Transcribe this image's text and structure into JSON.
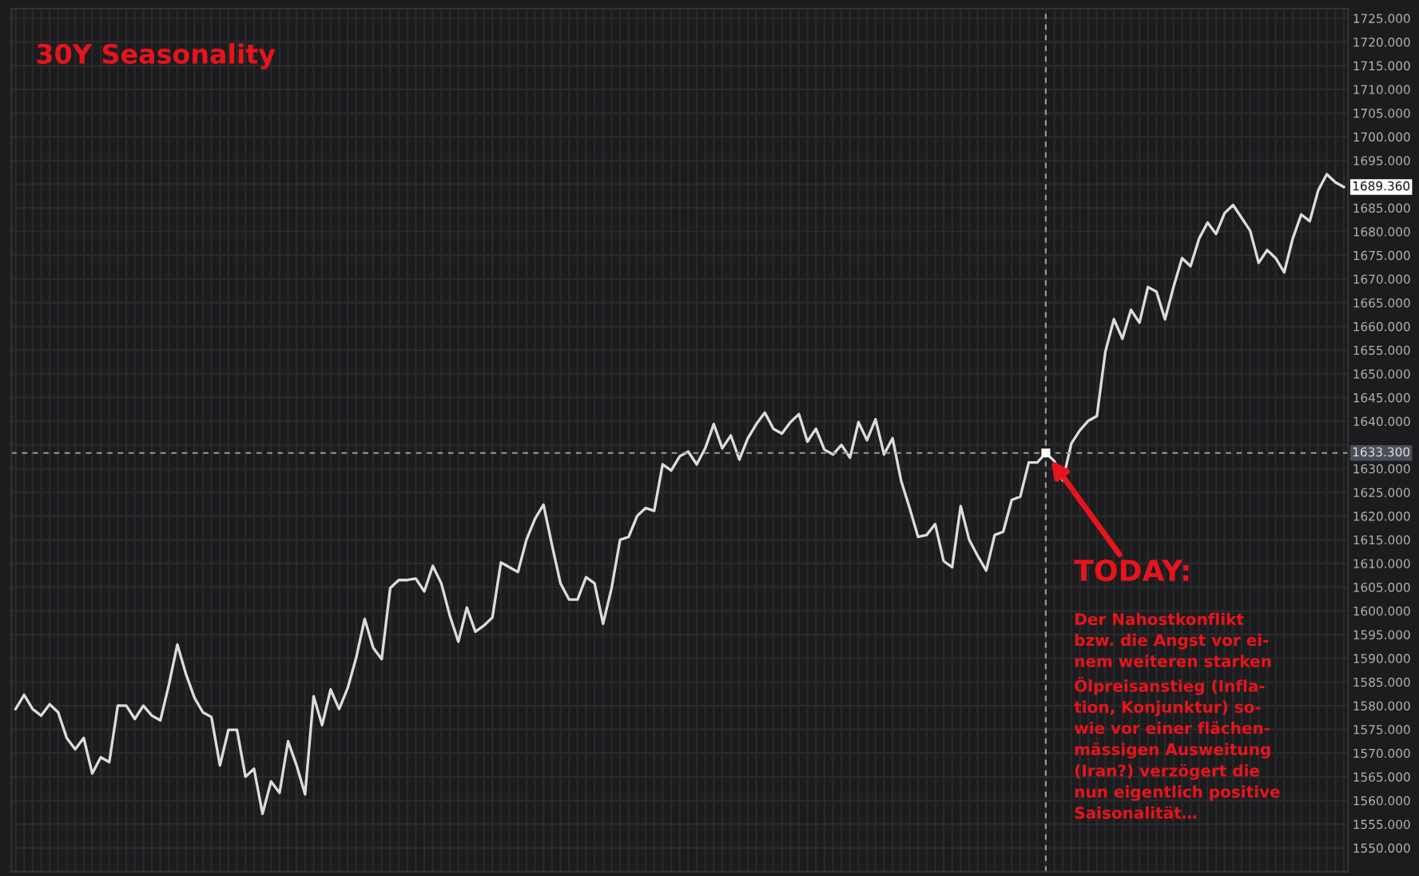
{
  "chart_data": {
    "type": "line",
    "title": "30Y Seasonality",
    "categories": [
      null,
      null,
      null,
      null,
      null,
      null,
      null,
      null,
      null,
      null,
      null,
      null,
      null,
      null,
      null,
      null,
      null,
      null,
      null,
      null,
      null,
      null,
      null,
      null,
      null,
      null,
      null,
      null,
      null,
      null,
      null,
      null,
      null,
      null,
      null,
      null,
      null,
      null,
      null,
      null,
      null,
      null,
      null,
      null,
      null,
      null,
      null,
      null,
      null,
      null,
      null,
      null,
      null,
      null,
      null,
      null,
      null,
      null,
      null,
      null,
      null,
      null,
      null,
      null,
      null,
      null,
      null,
      null,
      null,
      null,
      null,
      null,
      null,
      null,
      null,
      null,
      null,
      null,
      null,
      null,
      null,
      null,
      null,
      null,
      null,
      null,
      null,
      null,
      null,
      null,
      null,
      null,
      null,
      null,
      null,
      null,
      null,
      null,
      null,
      null,
      null,
      null,
      null,
      null,
      null,
      null,
      null,
      null,
      null,
      null,
      null,
      null,
      null,
      null,
      null,
      null,
      null,
      null,
      null,
      null,
      null,
      null,
      null,
      null,
      null,
      null,
      null,
      null,
      null,
      null,
      null,
      null,
      null,
      null,
      null,
      null,
      null,
      null,
      null,
      null,
      null,
      null,
      null,
      null,
      null,
      null,
      null,
      null,
      null,
      null,
      null,
      null,
      null,
      null,
      null,
      null,
      null
    ],
    "series": [
      {
        "color": "#dcdcdc",
        "values": [
          1579.3,
          1582.3,
          1579.3,
          1577.9,
          1580.3,
          1578.6,
          1573.2,
          1570.8,
          1573.2,
          1565.7,
          1569.1,
          1568.1,
          1580.0,
          1580.0,
          1577.2,
          1580.0,
          1577.9,
          1576.9,
          1584.4,
          1592.9,
          1586.7,
          1581.7,
          1578.6,
          1577.6,
          1567.4,
          1574.9,
          1574.9,
          1565.0,
          1566.7,
          1557.2,
          1564.0,
          1561.6,
          1572.5,
          1567.4,
          1561.3,
          1582.0,
          1575.9,
          1583.4,
          1579.3,
          1583.7,
          1590.1,
          1598.3,
          1592.2,
          1589.8,
          1604.8,
          1606.5,
          1606.5,
          1606.8,
          1604.1,
          1609.5,
          1605.8,
          1599.0,
          1593.5,
          1600.7,
          1595.6,
          1596.9,
          1598.6,
          1610.2,
          1609.2,
          1608.2,
          1615.0,
          1619.4,
          1622.4,
          1613.9,
          1605.8,
          1602.4,
          1602.4,
          1607.1,
          1605.8,
          1597.3,
          1604.8,
          1615.0,
          1615.6,
          1620.0,
          1621.7,
          1621.1,
          1630.9,
          1629.6,
          1632.6,
          1633.6,
          1630.9,
          1634.3,
          1639.4,
          1634.3,
          1637.0,
          1631.9,
          1636.4,
          1639.4,
          1641.8,
          1638.4,
          1637.4,
          1639.8,
          1641.5,
          1635.7,
          1638.4,
          1634.0,
          1633.0,
          1635.0,
          1632.3,
          1639.8,
          1636.0,
          1640.4,
          1633.0,
          1636.4,
          1627.5,
          1621.7,
          1615.6,
          1616.0,
          1618.3,
          1610.5,
          1609.2,
          1622.1,
          1615.0,
          1611.6,
          1608.5,
          1616.0,
          1616.7,
          1623.4,
          1624.1,
          1631.3,
          1631.3,
          1633.3,
          1631.6,
          1627.5,
          1635.3,
          1638.1,
          1640.1,
          1641.1,
          1654.7,
          1661.5,
          1657.4,
          1663.5,
          1660.8,
          1668.3,
          1667.3,
          1661.5,
          1668.3,
          1674.4,
          1672.7,
          1678.5,
          1681.9,
          1679.5,
          1683.9,
          1685.6,
          1682.9,
          1680.2,
          1673.4,
          1676.1,
          1674.4,
          1671.4,
          1678.5,
          1683.6,
          1682.2,
          1688.7,
          1692.1,
          1690.4,
          1689.4
        ]
      }
    ],
    "ylim": [
      1545,
      1727
    ],
    "yticks": [
      {
        "value": 1550,
        "label": "1550.000"
      },
      {
        "value": 1555,
        "label": "1555.000"
      },
      {
        "value": 1560,
        "label": "1560.000"
      },
      {
        "value": 1565,
        "label": "1565.000"
      },
      {
        "value": 1570,
        "label": "1570.000"
      },
      {
        "value": 1575,
        "label": "1575.000"
      },
      {
        "value": 1580,
        "label": "1580.000"
      },
      {
        "value": 1585,
        "label": "1585.000"
      },
      {
        "value": 1590,
        "label": "1590.000"
      },
      {
        "value": 1595,
        "label": "1595.000"
      },
      {
        "value": 1600,
        "label": "1600.000"
      },
      {
        "value": 1605,
        "label": "1605.000"
      },
      {
        "value": 1610,
        "label": "1610.000"
      },
      {
        "value": 1615,
        "label": "1615.000"
      },
      {
        "value": 1620,
        "label": "1620.000"
      },
      {
        "value": 1625,
        "label": "1625.000"
      },
      {
        "value": 1630,
        "label": "1630.000"
      },
      {
        "value": 1635,
        "label": null
      },
      {
        "value": 1640,
        "label": "1640.000"
      },
      {
        "value": 1645,
        "label": "1645.000"
      },
      {
        "value": 1650,
        "label": "1650.000"
      },
      {
        "value": 1655,
        "label": "1655.000"
      },
      {
        "value": 1660,
        "label": "1660.000"
      },
      {
        "value": 1665,
        "label": "1665.000"
      },
      {
        "value": 1670,
        "label": "1670.000"
      },
      {
        "value": 1675,
        "label": "1675.000"
      },
      {
        "value": 1680,
        "label": "1680.000"
      },
      {
        "value": 1685,
        "label": "1685.000"
      },
      {
        "value": 1690,
        "label": null
      },
      {
        "value": 1695,
        "label": "1695.000"
      },
      {
        "value": 1700,
        "label": "1700.000"
      },
      {
        "value": 1705,
        "label": "1705.000"
      },
      {
        "value": 1710,
        "label": "1710.000"
      },
      {
        "value": 1715,
        "label": "1715.000"
      },
      {
        "value": 1720,
        "label": "1720.000"
      },
      {
        "value": 1725,
        "label": "1725.000"
      }
    ],
    "grid": true,
    "tick_labels": "y",
    "ref_lines": [
      {
        "axis": "y",
        "value": 1633.3,
        "label": "1633.300",
        "color": "#9a9a9a",
        "line_style": "dashed"
      }
    ],
    "annotations": [
      "TODAY:",
      "Der Nahostkonflikt\nbzw. die Angst vor ei-\nnem weiteren starken\nÖlpreisanstieg (Infla-\ntion, Konjunktur) so-\nwie vor einer flächen-\nmässigen Ausweitung\n(Iran?) verzögert die\nnun eigentlich positive\nSaisonalität…",
      "1689.360"
    ]
  }
}
